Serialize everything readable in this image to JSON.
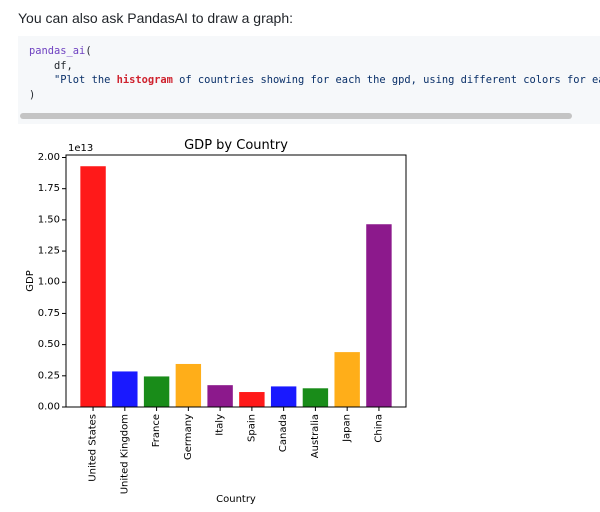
{
  "intro_text": "You can also ask PandasAI to draw a graph:",
  "code": {
    "line1_fn": "pandas_ai",
    "line1_paren": "(",
    "line2": "df,",
    "line3_indent": "    ",
    "line3_pre": "\"Plot the ",
    "line3_highlight": "histogram",
    "line3_post": " of countries showing for each the gpd, using different colors for each bar\",",
    "line4": ")"
  },
  "chart_data": {
    "type": "bar",
    "title": "GDP by Country",
    "xlabel": "Country",
    "ylabel": "GDP",
    "y_scale_label": "1e13",
    "categories": [
      "United States",
      "United Kingdom",
      "France",
      "Germany",
      "Italy",
      "Spain",
      "Canada",
      "Australia",
      "Japan",
      "China"
    ],
    "values": [
      1.93,
      0.285,
      0.245,
      0.345,
      0.175,
      0.12,
      0.165,
      0.15,
      0.44,
      1.465
    ],
    "value_unit_multiplier": 10000000000000.0,
    "colors": [
      "#ff0000",
      "#0000ff",
      "#008000",
      "#ffa500",
      "#800080",
      "#ff0000",
      "#0000ff",
      "#008000",
      "#ffa500",
      "#800080"
    ],
    "ylim": [
      0,
      2.02
    ],
    "yticks": [
      "0.00",
      "0.25",
      "0.50",
      "0.75",
      "1.00",
      "1.25",
      "1.50",
      "1.75",
      "2.00"
    ],
    "ytick_values": [
      0,
      0.25,
      0.5,
      0.75,
      1.0,
      1.25,
      1.5,
      1.75,
      2.0
    ],
    "grid": false,
    "legend": "none"
  }
}
